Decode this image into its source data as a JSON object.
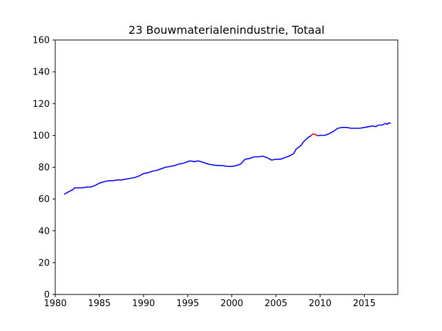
{
  "chart_data": {
    "type": "line",
    "title": "23 Bouwmaterialenindustrie, Totaal",
    "xlabel": "",
    "ylabel": "",
    "xlim": [
      1980,
      2018.8
    ],
    "ylim": [
      0,
      160
    ],
    "xticks": [
      1980,
      1985,
      1990,
      1995,
      2000,
      2005,
      2010,
      2015
    ],
    "yticks": [
      0,
      20,
      40,
      60,
      80,
      100,
      120,
      140,
      160
    ],
    "grid": false,
    "legend": "none",
    "series": [
      {
        "color": "#0000ff",
        "x": [
          1981.0,
          1981.5,
          1982.0,
          1982.2,
          1983.0,
          1983.5,
          1984.0,
          1984.5,
          1985.0,
          1985.3,
          1986.0,
          1986.5,
          1987.0,
          1987.5,
          1988.0,
          1988.5,
          1989.0,
          1989.5,
          1990.0,
          1990.5,
          1991.0,
          1991.5,
          1992.0,
          1992.5,
          1993.0,
          1993.5,
          1994.0,
          1994.5,
          1995.0,
          1995.3,
          1995.8,
          1996.2,
          1996.8,
          1997.3,
          1997.8,
          1998.5,
          1999.0,
          1999.5,
          2000.0,
          2000.5,
          2001.0,
          2001.5,
          2002.0,
          2002.5,
          2003.0,
          2003.5,
          2004.0,
          2004.5,
          2005.0,
          2005.5,
          2006.0,
          2006.5,
          2007.0,
          2007.3,
          2007.8,
          2008.2,
          2008.6,
          2009.0
        ],
        "y": [
          63,
          64.5,
          66,
          67,
          67,
          67.5,
          67.5,
          68.5,
          70,
          70.5,
          71.5,
          71.5,
          72,
          72,
          72.5,
          73,
          73.5,
          74.5,
          76,
          76.5,
          77.5,
          78,
          79,
          80,
          80.5,
          81,
          82,
          82.5,
          83.5,
          84,
          83.5,
          84,
          83,
          82,
          81.5,
          81,
          81,
          80.5,
          80.5,
          81,
          82,
          85,
          85.5,
          86.5,
          86.5,
          87,
          86,
          84.5,
          85,
          85,
          86,
          87,
          88.5,
          91.5,
          93.5,
          96.5,
          98.5,
          100
        ]
      },
      {
        "color": "#ff0000",
        "x": [
          2009.0,
          2009.2,
          2009.5,
          2009.7
        ],
        "y": [
          100,
          101,
          100.5,
          99.8
        ]
      },
      {
        "color": "#0000ff",
        "x": [
          2009.7,
          2010.0,
          2010.5,
          2011.0,
          2011.5,
          2012.0,
          2012.5,
          2013.0,
          2013.5,
          2014.0,
          2014.5,
          2015.0,
          2015.5,
          2016.0,
          2016.3,
          2016.6,
          2017.0,
          2017.4,
          2017.6,
          2017.8,
          2018.0
        ],
        "y": [
          99.8,
          100,
          100,
          101,
          102.5,
          104.5,
          105,
          105,
          104.5,
          104.5,
          104.5,
          105,
          105.5,
          106,
          105.5,
          106.5,
          106.5,
          107.5,
          107,
          108,
          107.5
        ]
      }
    ]
  }
}
